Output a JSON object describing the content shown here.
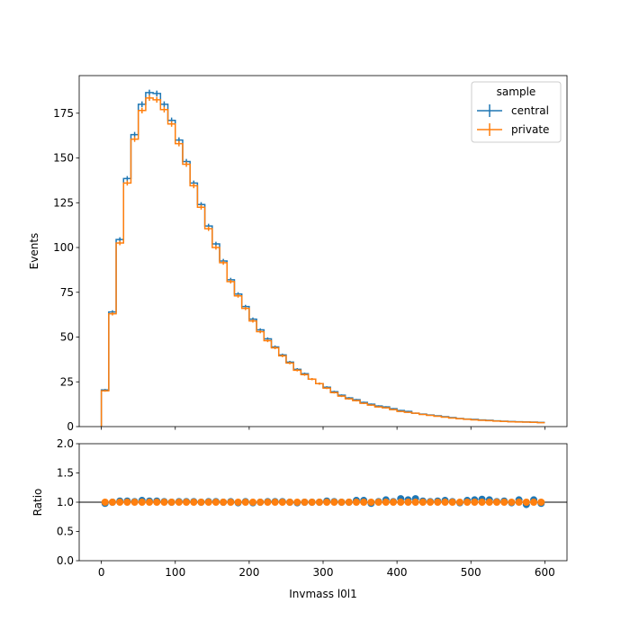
{
  "colors": {
    "central": "#1f77b4",
    "private": "#ff7f0e",
    "reference_line": "#000000",
    "axes": "#000000"
  },
  "chart_data": [
    {
      "type": "step",
      "panel": "main",
      "xlabel": "",
      "ylabel": "Events",
      "xlim": [
        -30,
        630
      ],
      "ylim": [
        0,
        196
      ],
      "x_ticks": [
        0,
        100,
        200,
        300,
        400,
        500,
        600
      ],
      "y_ticks": [
        0,
        25,
        50,
        75,
        100,
        125,
        150,
        175
      ],
      "x_tick_labels_shown": false,
      "bin_edges": [
        0,
        10,
        20,
        30,
        40,
        50,
        60,
        70,
        80,
        90,
        100,
        110,
        120,
        130,
        140,
        150,
        160,
        170,
        180,
        190,
        200,
        210,
        220,
        230,
        240,
        250,
        260,
        270,
        280,
        290,
        300,
        310,
        320,
        330,
        340,
        350,
        360,
        370,
        380,
        390,
        400,
        410,
        420,
        430,
        440,
        450,
        460,
        470,
        480,
        490,
        500,
        510,
        520,
        530,
        540,
        550,
        560,
        570,
        580,
        590,
        600
      ],
      "grid": false,
      "legend": {
        "title": "sample",
        "placement": "top-right"
      },
      "series": [
        {
          "name": "central",
          "color_key": "central",
          "values": [
            20.5,
            64,
            104.5,
            138.5,
            163,
            180,
            186.5,
            186,
            180,
            171,
            160,
            148,
            136,
            124,
            112,
            102,
            92.5,
            82,
            74,
            67,
            60,
            54,
            49,
            44.5,
            40,
            36,
            32,
            29.5,
            26.5,
            24,
            22,
            19.5,
            17.5,
            16,
            15,
            13.5,
            12.5,
            11.5,
            11,
            10,
            9,
            8.5,
            7.5,
            7,
            6.5,
            6,
            5.5,
            5,
            4.5,
            4.2,
            4,
            3.7,
            3.5,
            3.2,
            3,
            2.8,
            2.7,
            2.6,
            2.5,
            2.3
          ]
        },
        {
          "name": "private",
          "color_key": "private",
          "values": [
            20,
            63,
            102.5,
            136,
            160.5,
            176.5,
            183.5,
            182.5,
            177,
            169,
            158,
            146.5,
            134.5,
            122.5,
            110.5,
            100,
            91.5,
            81,
            73,
            66,
            59,
            53,
            48,
            44,
            39.5,
            35.5,
            31.5,
            29,
            26.5,
            24,
            21.5,
            19,
            17,
            15.5,
            14.5,
            13,
            12,
            11,
            10.5,
            9.5,
            8.5,
            8,
            7.5,
            6.8,
            6.3,
            5.8,
            5.3,
            4.8,
            4.4,
            4.1,
            3.8,
            3.5,
            3.3,
            3.1,
            2.9,
            2.7,
            2.6,
            2.5,
            2.4,
            2.2
          ]
        }
      ]
    },
    {
      "type": "scatter",
      "panel": "ratio",
      "xlabel": "Invmass l0l1",
      "ylabel": "Ratio",
      "xlim": [
        -30,
        630
      ],
      "ylim": [
        0,
        2
      ],
      "x_ticks": [
        0,
        100,
        200,
        300,
        400,
        500,
        600
      ],
      "y_ticks": [
        0.0,
        0.5,
        1.0,
        1.5,
        2.0
      ],
      "y_tick_labels": [
        "0.0",
        "0.5",
        "1.0",
        "1.5",
        "2.0"
      ],
      "reference_line": 1.0,
      "grid": false,
      "x": [
        5,
        15,
        25,
        35,
        45,
        55,
        65,
        75,
        85,
        95,
        105,
        115,
        125,
        135,
        145,
        155,
        165,
        175,
        185,
        195,
        205,
        215,
        225,
        235,
        245,
        255,
        265,
        275,
        285,
        295,
        305,
        315,
        325,
        335,
        345,
        355,
        365,
        375,
        385,
        395,
        405,
        415,
        425,
        435,
        445,
        455,
        465,
        475,
        485,
        495,
        505,
        515,
        525,
        535,
        545,
        555,
        565,
        575,
        585,
        595
      ],
      "series": [
        {
          "name": "central",
          "color_key": "central",
          "values": [
            0.98,
            1.0,
            1.02,
            1.02,
            1.01,
            1.03,
            1.02,
            1.02,
            1.01,
            1.0,
            1.01,
            1.01,
            1.01,
            1.0,
            1.01,
            1.01,
            1.0,
            1.01,
            0.99,
            1.01,
            0.99,
            1.0,
            1.01,
            1.01,
            1.01,
            1.0,
            0.99,
            1.0,
            1.0,
            1.0,
            1.02,
            1.01,
            1.0,
            1.0,
            1.03,
            1.03,
            0.98,
            1.01,
            1.04,
            1.01,
            1.06,
            1.04,
            1.06,
            1.02,
            1.01,
            1.02,
            1.03,
            1.01,
            0.99,
            1.03,
            1.04,
            1.05,
            1.04,
            1.01,
            1.02,
            0.99,
            1.04,
            0.96,
            1.04,
            0.98
          ]
        },
        {
          "name": "private",
          "color_key": "private",
          "values": [
            1.0,
            1.0,
            1.0,
            1.0,
            1.0,
            1.0,
            1.0,
            1.0,
            1.0,
            1.0,
            1.0,
            1.0,
            1.0,
            1.0,
            1.0,
            1.0,
            1.0,
            1.0,
            1.0,
            1.0,
            1.0,
            1.0,
            1.0,
            1.0,
            1.0,
            1.0,
            1.0,
            1.0,
            1.0,
            1.0,
            1.0,
            1.0,
            1.0,
            1.0,
            1.0,
            1.0,
            1.0,
            1.0,
            1.0,
            1.0,
            1.0,
            1.0,
            1.0,
            1.0,
            1.0,
            1.0,
            1.0,
            1.0,
            1.0,
            1.0,
            1.0,
            1.0,
            1.0,
            1.0,
            1.0,
            1.0,
            1.0,
            1.0,
            1.0,
            1.0
          ]
        }
      ]
    }
  ]
}
